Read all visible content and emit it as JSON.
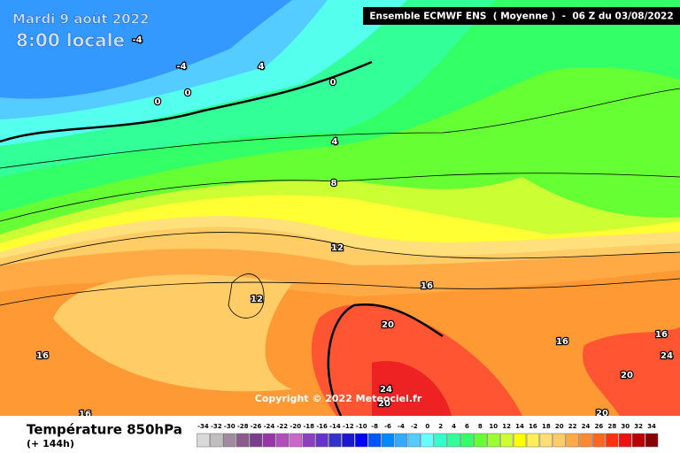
{
  "header": {
    "date": "Mardi 9 août 2022",
    "time": "8:00 locale",
    "title": "Ensemble ECMWF ENS  ( Moyenne )  -  06 Z du 03/08/2022"
  },
  "map": {
    "contour_labels": [
      -4,
      -4,
      4,
      0,
      0,
      0,
      4,
      8,
      12,
      12,
      16,
      16,
      16,
      20,
      16,
      16,
      24,
      20,
      24,
      20,
      20
    ],
    "copyright": "Copyright © 2022 Meteociel.fr"
  },
  "legend": {
    "title": "Température 850hPa",
    "lead": "(+ 144h)",
    "scale": {
      "labels": [
        -34,
        -32,
        -30,
        -28,
        -26,
        -24,
        -22,
        -20,
        -18,
        -16,
        -14,
        -12,
        -10,
        -8,
        -6,
        -4,
        -2,
        0,
        2,
        4,
        6,
        8,
        10,
        12,
        14,
        16,
        18,
        20,
        22,
        24,
        26,
        28,
        30,
        32,
        34
      ],
      "colors": [
        "#d9d9d9",
        "#bfbfbf",
        "#a08ca0",
        "#8c5a8c",
        "#7a3f8c",
        "#9933aa",
        "#b34dbf",
        "#cc66cc",
        "#8c3fbf",
        "#6633cc",
        "#3333cc",
        "#1a1acc",
        "#0000ff",
        "#0055ff",
        "#0088ff",
        "#33aaff",
        "#55ccff",
        "#66ffff",
        "#33ffcc",
        "#33ff99",
        "#33ff66",
        "#66ff33",
        "#99ff33",
        "#ccff33",
        "#ffff00",
        "#ffee55",
        "#ffdd77",
        "#ffcc66",
        "#ffaa44",
        "#ff8833",
        "#ff6622",
        "#ff3311",
        "#ee1111",
        "#bb0000",
        "#880000"
      ]
    }
  }
}
